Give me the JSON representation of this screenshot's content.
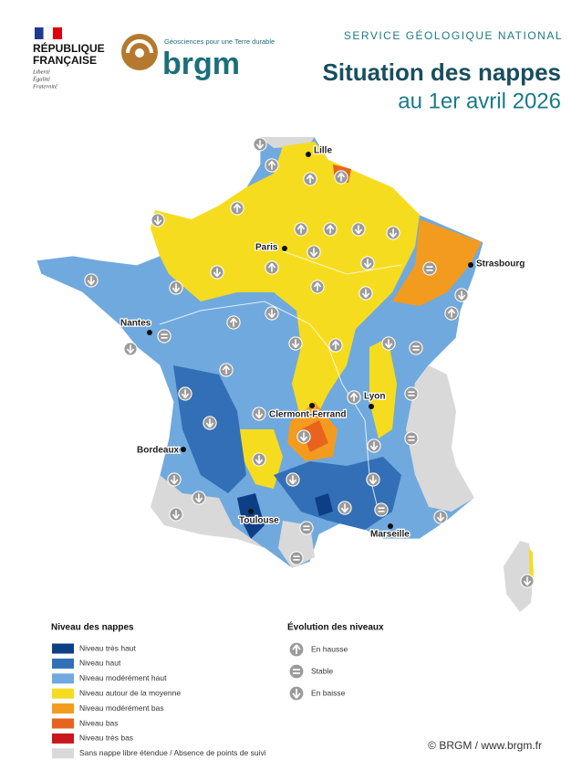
{
  "header": {
    "republique": [
      "RÉPUBLIQUE",
      "FRANÇAISE"
    ],
    "motto": [
      "Liberté",
      "Égalité",
      "Fraternité"
    ],
    "brgm_tagline": "Géosciences pour une Terre durable",
    "brgm_name": "brgm",
    "service": "SERVICE GÉOLOGIQUE NATIONAL",
    "title": "Situation des nappes",
    "subtitle": "au 1er avril 2026"
  },
  "cities": [
    "Lille",
    "Paris",
    "Strasbourg",
    "Nantes",
    "Lyon",
    "Clermont-Ferrand",
    "Bordeaux",
    "Toulouse",
    "Marseille"
  ],
  "legend_levels": {
    "title": "Niveau des nappes",
    "items": [
      {
        "label": "Niveau très haut",
        "color": "#0c3f85"
      },
      {
        "label": "Niveau haut",
        "color": "#336fb6"
      },
      {
        "label": "Niveau modérément haut",
        "color": "#70a9de"
      },
      {
        "label": "Niveau autour de la moyenne",
        "color": "#f6dc1f"
      },
      {
        "label": "Niveau modérément bas",
        "color": "#f39b1e"
      },
      {
        "label": "Niveau bas",
        "color": "#e8641e"
      },
      {
        "label": "Niveau très bas",
        "color": "#c8181d"
      },
      {
        "label": "Sans nappe libre étendue / Absence de points de suivi",
        "color": "#d9d9d9"
      }
    ]
  },
  "legend_evolution": {
    "title": "Évolution des niveaux",
    "items": [
      "En hausse",
      "Stable",
      "En baisse"
    ]
  },
  "copyright": "© BRGM / www.brgm.fr"
}
